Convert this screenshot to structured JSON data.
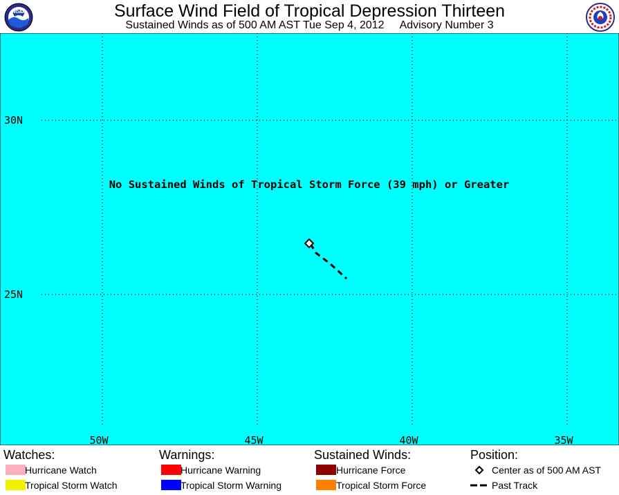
{
  "header": {
    "title": "Surface Wind Field of Tropical Depression Thirteen",
    "subtitle_left": "Sustained Winds as of 500 AM AST Tue Sep 4, 2012",
    "subtitle_right": "Advisory Number 3",
    "left_logo_text": "NOAA",
    "right_logo_text": "NATIONAL WEATHER SERVICE"
  },
  "map": {
    "ocean_color": "#00FFFF",
    "grid_color": "#000000",
    "message": "No Sustained Winds of Tropical Storm Force (39 mph) or Greater",
    "lat_labels": [
      "30N",
      "25N"
    ],
    "lon_labels": [
      "50W",
      "45W",
      "40W",
      "35W"
    ],
    "center_marker": "diamond-icon",
    "track_style": "dashed"
  },
  "legend": {
    "watches": {
      "heading": "Watches:",
      "items": [
        {
          "label": "Hurricane Watch",
          "color": "#FFB0C0"
        },
        {
          "label": "Tropical Storm Watch",
          "color": "#F0F000"
        }
      ]
    },
    "warnings": {
      "heading": "Warnings:",
      "items": [
        {
          "label": "Hurricane Warning",
          "color": "#FF0000"
        },
        {
          "label": "Tropical Storm Warning",
          "color": "#0000FF"
        }
      ]
    },
    "winds": {
      "heading": "Sustained Winds:",
      "items": [
        {
          "label": "Hurricane Force",
          "color": "#8B0000"
        },
        {
          "label": "Tropical Storm Force",
          "color": "#FF8000"
        }
      ]
    },
    "position": {
      "heading": "Position:",
      "items": [
        {
          "label": "Center as of 500 AM AST",
          "icon": "diamond-icon"
        },
        {
          "label": "Past Track",
          "icon": "dashed-line-icon"
        }
      ]
    }
  }
}
